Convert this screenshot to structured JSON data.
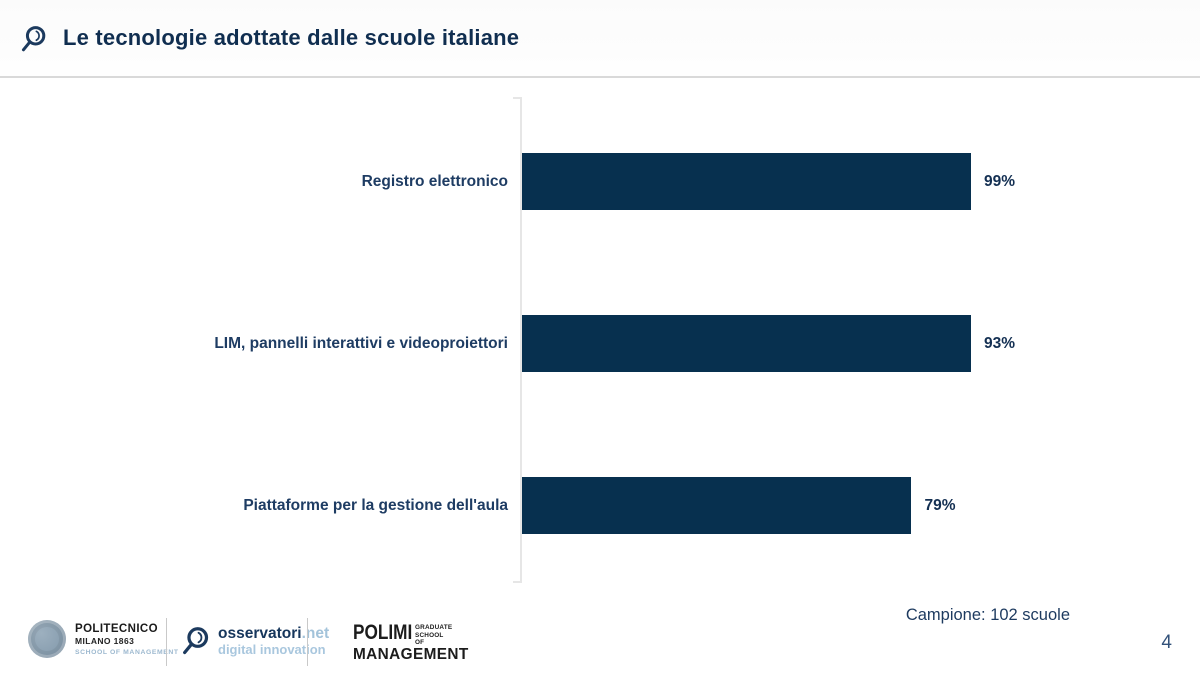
{
  "header": {
    "title": "Le tecnologie adottate dalle scuole italiane"
  },
  "chart_data": {
    "type": "bar",
    "orientation": "horizontal",
    "title": "Le tecnologie adottate dalle scuole italiane",
    "categories": [
      "Registro elettronico",
      "LIM, pannelli interattivi e videoproiettori",
      "Piattaforme per la gestione dell'aula"
    ],
    "values": [
      99,
      93,
      79
    ],
    "value_labels": [
      "99%",
      "93%",
      "79%"
    ],
    "xlim": [
      0,
      100
    ],
    "grid": false,
    "legend": false,
    "bar_color": "#07304f",
    "sample_note": "Campione: 102 scuole"
  },
  "footer": {
    "page_number": "4",
    "logos": {
      "politecnico": {
        "name": "POLITECNICO",
        "subtitle": "MILANO 1863",
        "school": "SCHOOL OF MANAGEMENT"
      },
      "osservatori": {
        "name": "osservatori",
        "domain": ".net",
        "tagline": "digital innovation"
      },
      "polimi": {
        "name": "POLIMI",
        "side_top": "GRADUATE",
        "side_bottom": "SCHOOL OF",
        "bottom": "MANAGEMENT"
      }
    }
  },
  "icons": {
    "header_icon": "osservatori-magnifier-icon",
    "footer_osservatori_icon": "osservatori-magnifier-icon",
    "politecnico_seal": "politecnico-seal-icon"
  },
  "colors": {
    "bar": "#07304f",
    "title_text": "#102e50",
    "label_text": "#1e3c63",
    "light_blue": "#a3c3da",
    "axis_line": "#e6e6e6"
  }
}
